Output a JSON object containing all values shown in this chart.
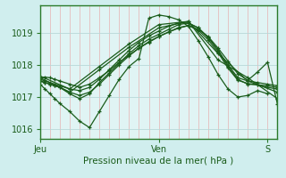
{
  "title": "",
  "xlabel": "Pression niveau de la mer( hPa )",
  "ylabel": "",
  "bg_color": "#d0eeee",
  "plot_bg_color": "#e0f4f4",
  "grid_color_v": "#e8a0a0",
  "grid_color_h": "#b8d8d8",
  "line_color": "#1a5c1a",
  "border_color": "#2a7a2a",
  "ylim": [
    1015.7,
    1019.85
  ],
  "xlim": [
    0,
    48
  ],
  "xtick_positions": [
    0,
    24,
    46
  ],
  "xtick_labels": [
    "Jeu",
    "Ven",
    "S"
  ],
  "ytick_positions": [
    1016,
    1017,
    1018,
    1019
  ],
  "lines": [
    {
      "x": [
        0,
        1,
        2,
        3,
        4,
        6,
        8,
        10,
        12,
        14,
        16,
        18,
        20,
        22,
        24,
        26,
        28,
        30,
        32,
        34,
        36,
        38,
        40,
        42,
        44,
        46,
        48
      ],
      "y": [
        1017.55,
        1017.5,
        1017.45,
        1017.4,
        1017.35,
        1017.25,
        1017.2,
        1017.3,
        1017.55,
        1017.85,
        1018.15,
        1018.45,
        1018.7,
        1018.9,
        1019.05,
        1019.2,
        1019.3,
        1019.3,
        1019.15,
        1018.85,
        1018.45,
        1018.0,
        1017.6,
        1017.5,
        1017.45,
        1017.4,
        1017.35
      ],
      "marker": "+"
    },
    {
      "x": [
        0,
        1,
        2,
        3,
        4,
        6,
        8,
        10,
        12,
        14,
        16,
        18,
        20,
        22,
        24,
        26,
        28,
        30,
        32,
        34,
        36,
        38,
        40,
        42,
        44,
        46,
        48
      ],
      "y": [
        1017.5,
        1017.45,
        1017.4,
        1017.35,
        1017.3,
        1017.1,
        1016.95,
        1017.1,
        1017.45,
        1017.75,
        1018.05,
        1018.35,
        1018.6,
        1018.8,
        1018.95,
        1019.1,
        1019.25,
        1019.3,
        1019.15,
        1018.85,
        1018.45,
        1017.95,
        1017.55,
        1017.4,
        1017.38,
        1017.35,
        1017.3
      ],
      "marker": "+"
    },
    {
      "x": [
        0,
        6,
        12,
        18,
        24,
        30,
        36,
        42,
        48
      ],
      "y": [
        1017.6,
        1017.15,
        1017.85,
        1018.55,
        1019.15,
        1019.35,
        1018.35,
        1017.5,
        1017.15
      ],
      "marker": "+"
    },
    {
      "x": [
        0,
        6,
        12,
        18,
        24,
        30,
        36,
        42,
        48
      ],
      "y": [
        1017.65,
        1017.25,
        1017.95,
        1018.65,
        1019.25,
        1019.35,
        1018.15,
        1017.6,
        1016.95
      ],
      "marker": "+"
    },
    {
      "x": [
        0,
        1,
        2,
        3,
        4,
        6,
        8,
        10,
        12,
        14,
        16,
        18,
        20,
        22,
        24,
        26,
        28,
        30,
        32,
        34,
        36,
        38,
        40,
        42,
        44,
        46
      ],
      "y": [
        1017.4,
        1017.25,
        1017.1,
        1016.95,
        1016.8,
        1016.55,
        1016.25,
        1016.05,
        1016.55,
        1017.05,
        1017.55,
        1017.95,
        1018.2,
        1019.45,
        1019.55,
        1019.5,
        1019.4,
        1019.2,
        1018.75,
        1018.25,
        1017.7,
        1017.25,
        1017.0,
        1017.05,
        1017.2,
        1017.1
      ],
      "marker": "+"
    },
    {
      "x": [
        0,
        1,
        2,
        3,
        4,
        6,
        8,
        10,
        12,
        14,
        16,
        18,
        20,
        22,
        24,
        26,
        28,
        30,
        32,
        34,
        36,
        38,
        40,
        42,
        44,
        46,
        48
      ],
      "y": [
        1017.5,
        1017.45,
        1017.4,
        1017.35,
        1017.3,
        1017.15,
        1017.05,
        1017.15,
        1017.4,
        1017.7,
        1018.0,
        1018.28,
        1018.52,
        1018.72,
        1018.88,
        1019.02,
        1019.16,
        1019.22,
        1019.08,
        1018.78,
        1018.38,
        1017.9,
        1017.52,
        1017.42,
        1017.38,
        1017.3,
        1017.25
      ],
      "marker": "+"
    },
    {
      "x": [
        0,
        1,
        2,
        3,
        4,
        6,
        8,
        10,
        12,
        14,
        16,
        18,
        20,
        22,
        24,
        26,
        28,
        30,
        32,
        34,
        36,
        38,
        40,
        42,
        44,
        46,
        48
      ],
      "y": [
        1017.6,
        1017.62,
        1017.6,
        1017.55,
        1017.5,
        1017.4,
        1017.3,
        1017.4,
        1017.6,
        1017.82,
        1018.08,
        1018.3,
        1018.52,
        1018.7,
        1018.88,
        1019.02,
        1019.14,
        1019.22,
        1019.1,
        1018.88,
        1018.52,
        1018.12,
        1017.72,
        1017.52,
        1017.78,
        1018.08,
        1016.78
      ],
      "marker": "+"
    }
  ]
}
